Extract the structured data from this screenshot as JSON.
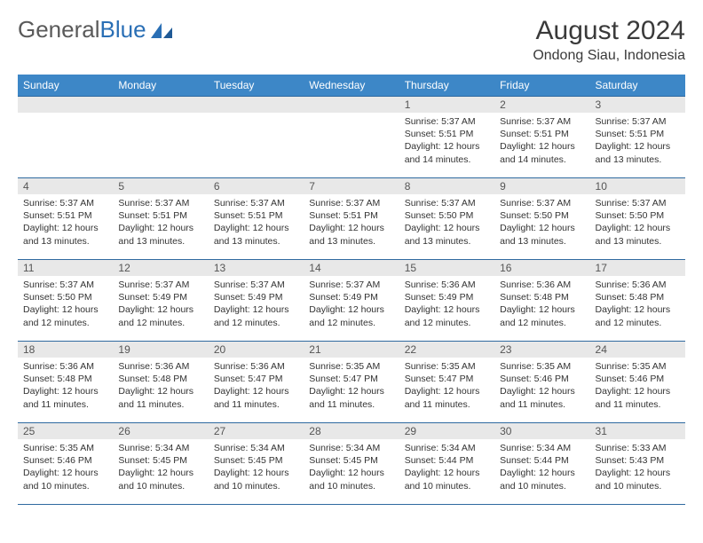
{
  "branding": {
    "logo_part1": "General",
    "logo_part2": "Blue"
  },
  "title": {
    "month": "August 2024",
    "location": "Ondong Siau, Indonesia"
  },
  "style": {
    "header_bg": "#3d87c7",
    "header_fg": "#ffffff",
    "border_color": "#2f6aa0",
    "daynum_bg": "#e8e8e8",
    "text_color": "#333333",
    "logo_gray": "#5a5a5a",
    "logo_blue": "#2a6fb5",
    "month_fontsize": 30,
    "location_fontsize": 16,
    "cell_fontsize": 10.5
  },
  "weekdays": [
    "Sunday",
    "Monday",
    "Tuesday",
    "Wednesday",
    "Thursday",
    "Friday",
    "Saturday"
  ],
  "grid": [
    [
      null,
      null,
      null,
      null,
      {
        "n": "1",
        "sr": "5:37 AM",
        "ss": "5:51 PM",
        "dl": "12 hours and 14 minutes."
      },
      {
        "n": "2",
        "sr": "5:37 AM",
        "ss": "5:51 PM",
        "dl": "12 hours and 14 minutes."
      },
      {
        "n": "3",
        "sr": "5:37 AM",
        "ss": "5:51 PM",
        "dl": "12 hours and 13 minutes."
      }
    ],
    [
      {
        "n": "4",
        "sr": "5:37 AM",
        "ss": "5:51 PM",
        "dl": "12 hours and 13 minutes."
      },
      {
        "n": "5",
        "sr": "5:37 AM",
        "ss": "5:51 PM",
        "dl": "12 hours and 13 minutes."
      },
      {
        "n": "6",
        "sr": "5:37 AM",
        "ss": "5:51 PM",
        "dl": "12 hours and 13 minutes."
      },
      {
        "n": "7",
        "sr": "5:37 AM",
        "ss": "5:51 PM",
        "dl": "12 hours and 13 minutes."
      },
      {
        "n": "8",
        "sr": "5:37 AM",
        "ss": "5:50 PM",
        "dl": "12 hours and 13 minutes."
      },
      {
        "n": "9",
        "sr": "5:37 AM",
        "ss": "5:50 PM",
        "dl": "12 hours and 13 minutes."
      },
      {
        "n": "10",
        "sr": "5:37 AM",
        "ss": "5:50 PM",
        "dl": "12 hours and 13 minutes."
      }
    ],
    [
      {
        "n": "11",
        "sr": "5:37 AM",
        "ss": "5:50 PM",
        "dl": "12 hours and 12 minutes."
      },
      {
        "n": "12",
        "sr": "5:37 AM",
        "ss": "5:49 PM",
        "dl": "12 hours and 12 minutes."
      },
      {
        "n": "13",
        "sr": "5:37 AM",
        "ss": "5:49 PM",
        "dl": "12 hours and 12 minutes."
      },
      {
        "n": "14",
        "sr": "5:37 AM",
        "ss": "5:49 PM",
        "dl": "12 hours and 12 minutes."
      },
      {
        "n": "15",
        "sr": "5:36 AM",
        "ss": "5:49 PM",
        "dl": "12 hours and 12 minutes."
      },
      {
        "n": "16",
        "sr": "5:36 AM",
        "ss": "5:48 PM",
        "dl": "12 hours and 12 minutes."
      },
      {
        "n": "17",
        "sr": "5:36 AM",
        "ss": "5:48 PM",
        "dl": "12 hours and 12 minutes."
      }
    ],
    [
      {
        "n": "18",
        "sr": "5:36 AM",
        "ss": "5:48 PM",
        "dl": "12 hours and 11 minutes."
      },
      {
        "n": "19",
        "sr": "5:36 AM",
        "ss": "5:48 PM",
        "dl": "12 hours and 11 minutes."
      },
      {
        "n": "20",
        "sr": "5:36 AM",
        "ss": "5:47 PM",
        "dl": "12 hours and 11 minutes."
      },
      {
        "n": "21",
        "sr": "5:35 AM",
        "ss": "5:47 PM",
        "dl": "12 hours and 11 minutes."
      },
      {
        "n": "22",
        "sr": "5:35 AM",
        "ss": "5:47 PM",
        "dl": "12 hours and 11 minutes."
      },
      {
        "n": "23",
        "sr": "5:35 AM",
        "ss": "5:46 PM",
        "dl": "12 hours and 11 minutes."
      },
      {
        "n": "24",
        "sr": "5:35 AM",
        "ss": "5:46 PM",
        "dl": "12 hours and 11 minutes."
      }
    ],
    [
      {
        "n": "25",
        "sr": "5:35 AM",
        "ss": "5:46 PM",
        "dl": "12 hours and 10 minutes."
      },
      {
        "n": "26",
        "sr": "5:34 AM",
        "ss": "5:45 PM",
        "dl": "12 hours and 10 minutes."
      },
      {
        "n": "27",
        "sr": "5:34 AM",
        "ss": "5:45 PM",
        "dl": "12 hours and 10 minutes."
      },
      {
        "n": "28",
        "sr": "5:34 AM",
        "ss": "5:45 PM",
        "dl": "12 hours and 10 minutes."
      },
      {
        "n": "29",
        "sr": "5:34 AM",
        "ss": "5:44 PM",
        "dl": "12 hours and 10 minutes."
      },
      {
        "n": "30",
        "sr": "5:34 AM",
        "ss": "5:44 PM",
        "dl": "12 hours and 10 minutes."
      },
      {
        "n": "31",
        "sr": "5:33 AM",
        "ss": "5:43 PM",
        "dl": "12 hours and 10 minutes."
      }
    ]
  ],
  "labels": {
    "sunrise": "Sunrise:",
    "sunset": "Sunset:",
    "daylight": "Daylight:"
  }
}
